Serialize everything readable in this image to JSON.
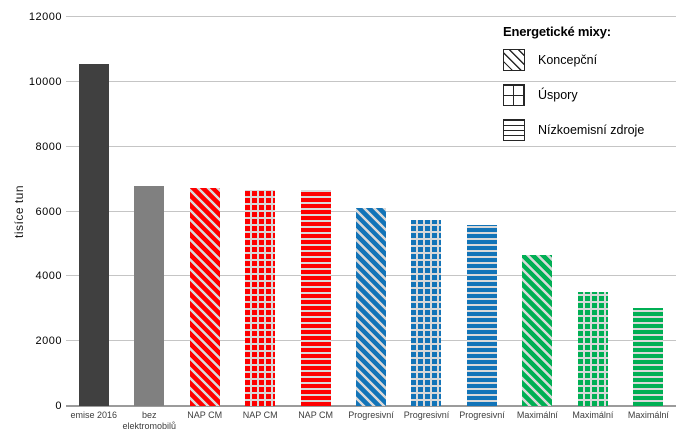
{
  "chart_data": {
    "type": "bar",
    "title": "",
    "ylabel": "tisíce tun",
    "xlabel": "",
    "ylim": [
      0,
      12000
    ],
    "ytick_interval": 2000,
    "yticks": [
      0,
      2000,
      4000,
      6000,
      8000,
      10000,
      12000
    ],
    "grid": true,
    "legend_position": "top-right",
    "pattern_stripe_color": "#D9D9D9",
    "legend": {
      "title": "Energetické mixy:",
      "items": [
        {
          "label": "Koncepční",
          "pattern": "diagonal"
        },
        {
          "label": "Úspory",
          "pattern": "grid"
        },
        {
          "label": "Nízkoemisní zdroje",
          "pattern": "horizontal"
        }
      ]
    },
    "categories": [
      "emise 2016",
      "bez elektromobilů",
      "NAP CM",
      "NAP CM",
      "NAP CM",
      "Progresivní",
      "Progresivní",
      "Progresivní",
      "Maximální",
      "Maximální",
      "Maximální"
    ],
    "bars": [
      {
        "label": "emise 2016",
        "value": 10550,
        "color": "#404040",
        "pattern": "solid"
      },
      {
        "label": "bez elektromobilů",
        "value": 6800,
        "color": "#808080",
        "pattern": "solid"
      },
      {
        "label": "NAP CM",
        "value": 6720,
        "color": "#FE0000",
        "pattern": "diagonal"
      },
      {
        "label": "NAP CM",
        "value": 6670,
        "color": "#FE0000",
        "pattern": "grid"
      },
      {
        "label": "NAP CM",
        "value": 6660,
        "color": "#FE0000",
        "pattern": "horizontal"
      },
      {
        "label": "Progresivní",
        "value": 6110,
        "color": "#1274B8",
        "pattern": "diagonal"
      },
      {
        "label": "Progresivní",
        "value": 5750,
        "color": "#1274B8",
        "pattern": "grid"
      },
      {
        "label": "Progresivní",
        "value": 5570,
        "color": "#1274B8",
        "pattern": "horizontal"
      },
      {
        "label": "Maximální",
        "value": 4670,
        "color": "#00AF54",
        "pattern": "diagonal"
      },
      {
        "label": "Maximální",
        "value": 3520,
        "color": "#00AF54",
        "pattern": "grid"
      },
      {
        "label": "Maximální",
        "value": 3020,
        "color": "#00AF54",
        "pattern": "horizontal"
      }
    ]
  }
}
